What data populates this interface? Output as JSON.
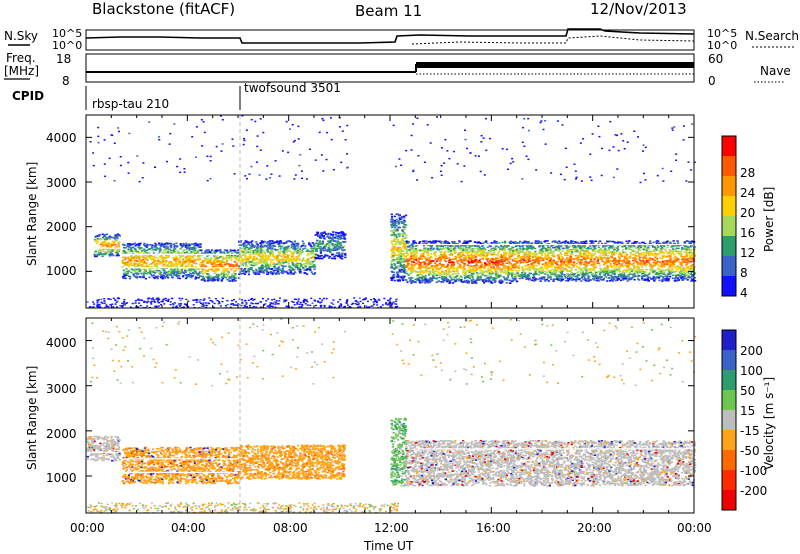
{
  "header": {
    "title": "Blackstone (fitACF)",
    "beam": "Beam 11",
    "date": "12/Nov/2013"
  },
  "params": {
    "nsky_label": "N.Sky",
    "nsky_ticks": [
      "10^5",
      "10^0"
    ],
    "nsearch_label": "N.Search",
    "freq_label_1": "Freq.",
    "freq_label_2": "[MHz]",
    "freq_ticks": [
      "18",
      "8"
    ],
    "nave_label": "Nave",
    "nave_ticks": [
      "60",
      "0"
    ],
    "cpid_label": "CPID",
    "programs": [
      {
        "name": "rbsp-tau 210",
        "start_hour": 0
      },
      {
        "name": "twofsound 3501",
        "start_hour": 6
      }
    ]
  },
  "axes": {
    "time_label": "Time UT",
    "time_ticks": [
      "00:00",
      "04:00",
      "08:00",
      "12:00",
      "16:00",
      "20:00",
      "00:00"
    ],
    "range_label": "Slant Range [km]",
    "range_ticks": [
      "1000",
      "2000",
      "3000",
      "4000"
    ]
  },
  "chart_data": [
    {
      "type": "heatmap",
      "name": "power-panel",
      "x_unit": "hour UT",
      "xlim": [
        0,
        24
      ],
      "ylim": [
        180,
        4500
      ],
      "ylabel": "Slant Range [km]",
      "colorbar": {
        "label": "Power [dB]",
        "ticks": [
          "28",
          "24",
          "20",
          "16",
          "12",
          "8",
          "4"
        ],
        "colors": [
          "#ff0000",
          "#ff5a00",
          "#ff9800",
          "#ffd000",
          "#a6d85a",
          "#2e9d6c",
          "#3a62c9",
          "#1010ff"
        ]
      },
      "bands": [
        {
          "x": [
            0.3,
            1.3
          ],
          "y": [
            1350,
            1850
          ],
          "level": 0.75
        },
        {
          "x": [
            1.4,
            4.5
          ],
          "y": [
            850,
            1650
          ],
          "level": 0.7
        },
        {
          "x": [
            4.5,
            6.0
          ],
          "y": [
            800,
            1500
          ],
          "level": 0.8
        },
        {
          "x": [
            6.0,
            9.0
          ],
          "y": [
            950,
            1700
          ],
          "level": 0.6
        },
        {
          "x": [
            9.0,
            10.2
          ],
          "y": [
            1300,
            1900
          ],
          "level": 0.35
        },
        {
          "x": [
            12.0,
            12.6
          ],
          "y": [
            800,
            2300
          ],
          "level": 0.6
        },
        {
          "x": [
            12.6,
            17.0
          ],
          "y": [
            750,
            1700
          ],
          "level": 0.85
        },
        {
          "x": [
            17.0,
            24.0
          ],
          "y": [
            800,
            1700
          ],
          "level": 0.8
        }
      ]
    },
    {
      "type": "heatmap",
      "name": "velocity-panel",
      "x_unit": "hour UT",
      "xlim": [
        0,
        24
      ],
      "ylim": [
        180,
        4500
      ],
      "ylabel": "Slant Range [km]",
      "colorbar": {
        "label": "Velocity [m s⁻¹]",
        "ticks": [
          "200",
          "100",
          "50",
          "15",
          "-15",
          "-50",
          "-100",
          "-200"
        ],
        "colors": [
          "#2020c8",
          "#3a62c9",
          "#2e9d6c",
          "#6cc650",
          "#bdbdbd",
          "#ffa31a",
          "#ff6a00",
          "#ff2a00",
          "#ee0000"
        ]
      },
      "bands": [
        {
          "x": [
            0.0,
            1.3
          ],
          "y": [
            1350,
            1900
          ],
          "level": "ground-scatter"
        },
        {
          "x": [
            1.4,
            6.0
          ],
          "y": [
            850,
            1650
          ],
          "level": "-50 to -100"
        },
        {
          "x": [
            6.0,
            10.2
          ],
          "y": [
            950,
            1700
          ],
          "level": "-50"
        },
        {
          "x": [
            12.0,
            12.6
          ],
          "y": [
            800,
            2300
          ],
          "level": "+15 to +50"
        },
        {
          "x": [
            12.6,
            24.0
          ],
          "y": [
            800,
            1800
          ],
          "level": "ground-scatter"
        }
      ]
    }
  ]
}
